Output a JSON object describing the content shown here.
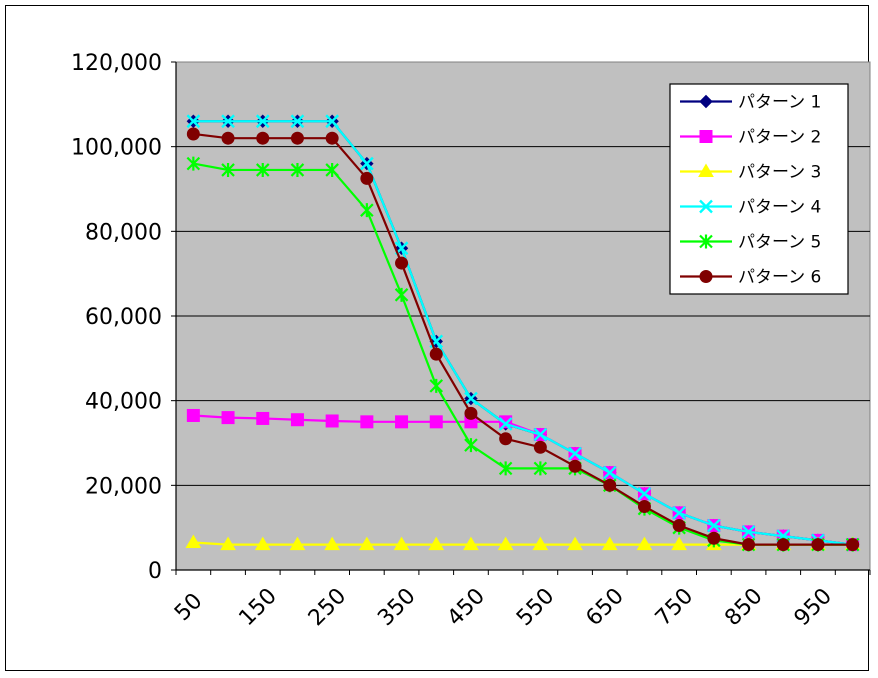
{
  "chart_data": {
    "type": "line",
    "title": "",
    "xlabel": "",
    "ylabel": "",
    "x": [
      50,
      100,
      150,
      200,
      250,
      300,
      350,
      400,
      450,
      500,
      550,
      600,
      650,
      700,
      750,
      800,
      850,
      900,
      950,
      1000
    ],
    "x_tick_labels": [
      "50",
      "150",
      "250",
      "350",
      "450",
      "550",
      "650",
      "750",
      "850",
      "950"
    ],
    "y_tick_labels": [
      "0",
      "20,000",
      "40,000",
      "60,000",
      "80,000",
      "100,000",
      "120,000"
    ],
    "ylim": [
      0,
      120000
    ],
    "grid": true,
    "legend_position": "right",
    "plot_background": "#c0c0c0",
    "series": [
      {
        "name": "パターン 1",
        "color": "#000080",
        "marker": "diamond",
        "values": [
          106000,
          106000,
          106000,
          106000,
          106000,
          96000,
          76000,
          54000,
          40500,
          34500,
          32000,
          27500,
          23000,
          18000,
          13500,
          10500,
          9000,
          8000,
          7000,
          6000
        ]
      },
      {
        "name": "パターン 2",
        "color": "#ff00ff",
        "marker": "square",
        "values": [
          36500,
          36000,
          35800,
          35500,
          35200,
          35000,
          35000,
          35000,
          35000,
          35000,
          32000,
          27500,
          23000,
          18000,
          13500,
          10500,
          9000,
          8000,
          7000,
          6000
        ]
      },
      {
        "name": "パターン 3",
        "color": "#ffff00",
        "marker": "triangle",
        "values": [
          6500,
          6000,
          6000,
          6000,
          6000,
          6000,
          6000,
          6000,
          6000,
          6000,
          6000,
          6000,
          6000,
          6000,
          6000,
          6000,
          6000,
          6000,
          6000,
          6000
        ]
      },
      {
        "name": "パターン 4",
        "color": "#00ffff",
        "marker": "x",
        "values": [
          106000,
          106000,
          106000,
          106000,
          106000,
          96000,
          76000,
          54000,
          40500,
          34500,
          32000,
          27500,
          23000,
          18000,
          13500,
          10500,
          9000,
          8000,
          7000,
          6000
        ]
      },
      {
        "name": "パターン 5",
        "color": "#00ff00",
        "marker": "star",
        "values": [
          96000,
          94500,
          94500,
          94500,
          94500,
          85000,
          65000,
          43500,
          29500,
          24000,
          24000,
          24000,
          20000,
          14500,
          10000,
          7000,
          6000,
          6000,
          6000,
          6000
        ]
      },
      {
        "name": "パターン 6",
        "color": "#800000",
        "marker": "circle",
        "values": [
          103000,
          102000,
          102000,
          102000,
          102000,
          92500,
          72500,
          51000,
          37000,
          31000,
          29000,
          24500,
          20000,
          15000,
          10500,
          7500,
          6000,
          6000,
          6000,
          6000
        ]
      }
    ]
  }
}
